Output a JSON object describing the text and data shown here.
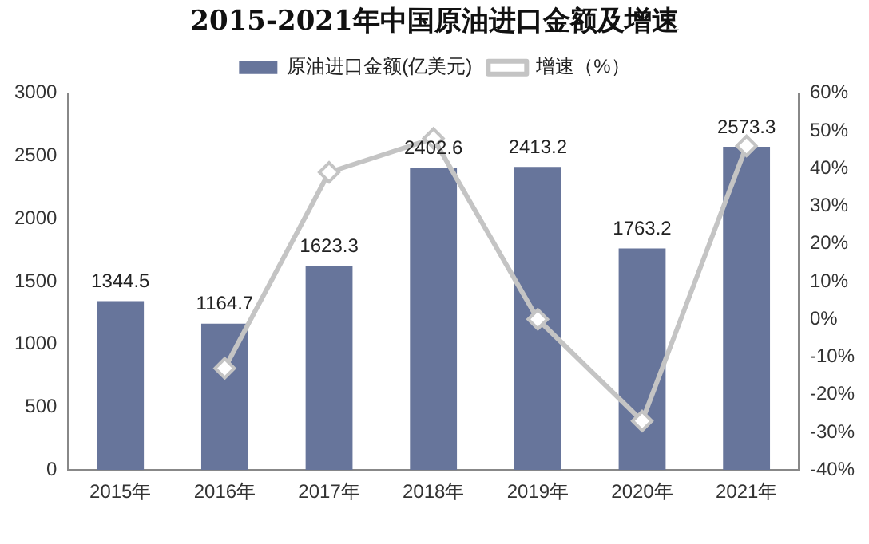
{
  "chart_data": {
    "type": "bar",
    "title": "2015-2021年中国原油进口金额及增速",
    "categories": [
      "2015年",
      "2016年",
      "2017年",
      "2018年",
      "2019年",
      "2020年",
      "2021年"
    ],
    "series": [
      {
        "name": "原油进口金额(亿美元)",
        "color": "#67759b",
        "values": [
          1344.5,
          1164.7,
          1623.3,
          2402.6,
          2413.2,
          1763.2,
          2573.3
        ],
        "value_labels": [
          "1344.5",
          "1164.7",
          "1623.3",
          "2402.6",
          "2413.2",
          "1763.2",
          "2573.3"
        ]
      },
      {
        "name": "增速（%）",
        "type": "line",
        "axis": "y2",
        "color": "#c4c4c4",
        "marker": "diamond",
        "values": [
          null,
          -13,
          39,
          48,
          0,
          -27,
          46
        ]
      }
    ],
    "ylim": [
      0,
      3000
    ],
    "yticks": [
      0,
      500,
      1000,
      1500,
      2000,
      2500,
      3000
    ],
    "y2lim": [
      -40,
      60
    ],
    "y2ticks": [
      {
        "value": -40,
        "label": "-40%"
      },
      {
        "value": -30,
        "label": "-30%"
      },
      {
        "value": -20,
        "label": "-20%"
      },
      {
        "value": -10,
        "label": "-10%"
      },
      {
        "value": 0,
        "label": "0%"
      },
      {
        "value": 10,
        "label": "10%"
      },
      {
        "value": 20,
        "label": "20%"
      },
      {
        "value": 30,
        "label": "30%"
      },
      {
        "value": 40,
        "label": "40%"
      },
      {
        "value": 50,
        "label": "50%"
      },
      {
        "value": 60,
        "label": "60%"
      }
    ],
    "grid": false,
    "legend": "top"
  }
}
